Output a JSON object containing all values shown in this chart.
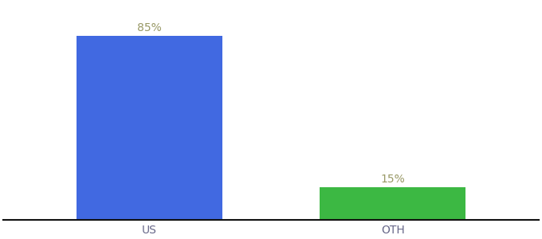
{
  "categories": [
    "US",
    "OTH"
  ],
  "values": [
    85,
    15
  ],
  "bar_colors": [
    "#4169E1",
    "#3CB843"
  ],
  "value_labels": [
    "85%",
    "15%"
  ],
  "label_color": "#999966",
  "background_color": "#ffffff",
  "x_positions": [
    0,
    1
  ],
  "xlim": [
    -0.6,
    1.6
  ],
  "ylim": [
    0,
    100
  ],
  "bar_width": 0.6,
  "label_fontsize": 10,
  "tick_fontsize": 10
}
